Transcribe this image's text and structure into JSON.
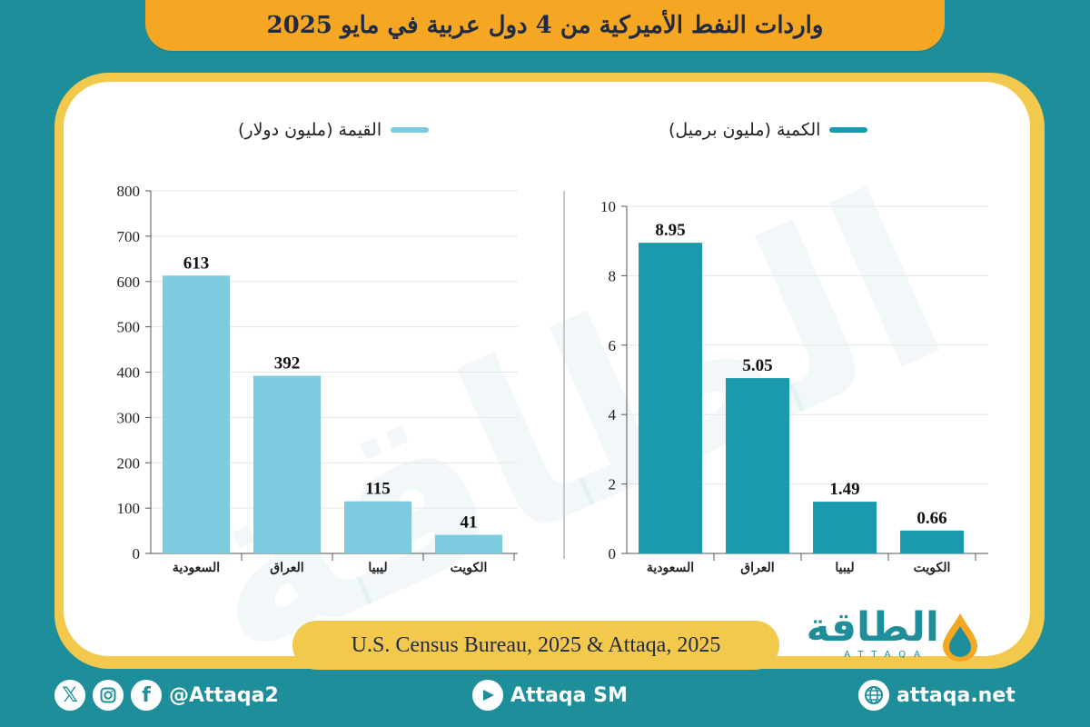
{
  "title": "واردات النفط الأميركية من 4 دول عربية في مايو 2025",
  "colors": {
    "value_bar": "#7ccbde",
    "quantity_bar": "#1a9aad",
    "accent": "#f5a623",
    "background": "#1f8e9b"
  },
  "chart_data": [
    {
      "type": "bar",
      "title": "القيمة (مليون دولار)",
      "categories": [
        "السعودية",
        "العراق",
        "ليبيا",
        "الكويت"
      ],
      "values": [
        613,
        392,
        115,
        41
      ],
      "data_labels": [
        "613",
        "392",
        "115",
        "41"
      ],
      "ylim": [
        0,
        800
      ],
      "yticks": [
        "0",
        "100",
        "200",
        "300",
        "400",
        "500",
        "600",
        "700",
        "800"
      ],
      "ytick_values": [
        0,
        100,
        200,
        300,
        400,
        500,
        600,
        700,
        800
      ],
      "grid": true,
      "color": "#7ccbde"
    },
    {
      "type": "bar",
      "title": "الكمية (مليون برميل)",
      "categories": [
        "السعودية",
        "العراق",
        "ليبيا",
        "الكويت"
      ],
      "values": [
        8.95,
        5.05,
        1.49,
        0.66
      ],
      "data_labels": [
        "8.95",
        "5.05",
        "1.49",
        "0.66"
      ],
      "ylim": [
        0,
        10
      ],
      "yticks": [
        "0",
        "2",
        "4",
        "6",
        "8",
        "10"
      ],
      "ytick_values": [
        0,
        2,
        4,
        6,
        8,
        10
      ],
      "grid": true,
      "color": "#1a9aad"
    }
  ],
  "source": "U.S. Census Bureau, 2025 & Attaqa, 2025",
  "logo": {
    "arabic": "الطاقة",
    "english": "ATTAQA"
  },
  "footer": {
    "social_handle": "@Attaqa2",
    "youtube": "Attaqa SM",
    "website": "attaqa.net"
  }
}
